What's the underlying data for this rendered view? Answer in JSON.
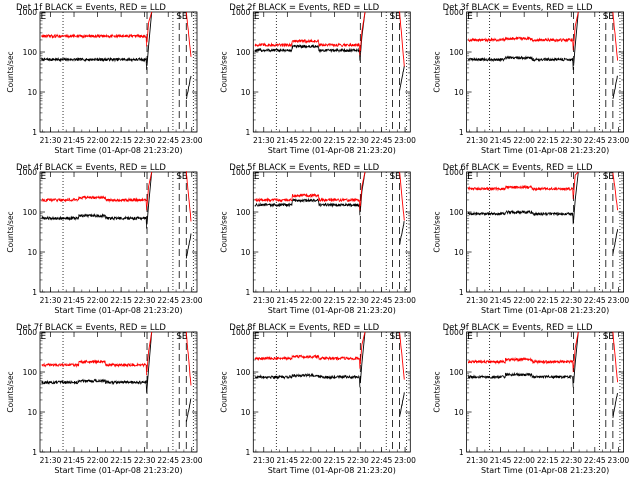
{
  "colors": {
    "background": "#ffffff",
    "events": "#000000",
    "lld": "#ff0000",
    "axis": "#000000"
  },
  "chart_data": [
    {
      "type": "line",
      "title": "Det 1f BLACK = Events, RED = LLD",
      "ylabel": "Counts/sec",
      "xlabel": "Start Time (01-Apr-08 21:23:20)",
      "yscale": "log",
      "ylim": [
        1,
        1000
      ],
      "y_ticks": [
        "1",
        "10",
        "100",
        "1000"
      ],
      "x_ticks": [
        "21:30",
        "21:45",
        "22:00",
        "22:15",
        "22:30",
        "22:45",
        "23:00"
      ],
      "xlim": [
        "21:23:20",
        "23:03:20"
      ],
      "markers": [
        {
          "label": "E",
          "time": "21:23:40"
        },
        {
          "label": "S",
          "time": "22:52:00"
        },
        {
          "label": "E",
          "time": "22:55:30"
        }
      ],
      "series": [
        {
          "color": "#000000",
          "base": 65,
          "bump": 1.0
        },
        {
          "color": "#ff0000",
          "base": 250,
          "bump": 1.0
        }
      ]
    },
    {
      "type": "line",
      "title": "Det 2f BLACK = Events, RED = LLD",
      "ylabel": "Counts/sec",
      "xlabel": "Start Time (01-Apr-08 21:23:20)",
      "yscale": "log",
      "ylim": [
        1,
        1000
      ],
      "y_ticks": [
        "1",
        "10",
        "100",
        "1000"
      ],
      "x_ticks": [
        "21:30",
        "21:45",
        "22:00",
        "22:15",
        "22:30",
        "22:45",
        "23:00"
      ],
      "xlim": [
        "21:23:20",
        "23:03:20"
      ],
      "markers": [
        {
          "label": "E",
          "time": "21:23:40"
        },
        {
          "label": "S",
          "time": "22:52:00"
        },
        {
          "label": "E",
          "time": "22:55:30"
        }
      ],
      "series": [
        {
          "color": "#000000",
          "base": 110,
          "bump": 1.25
        },
        {
          "color": "#ff0000",
          "base": 150,
          "bump": 1.25
        }
      ]
    },
    {
      "type": "line",
      "title": "Det 3f BLACK = Events, RED = LLD",
      "ylabel": "Counts/sec",
      "xlabel": "Start Time (01-Apr-08 21:23:20)",
      "yscale": "log",
      "ylim": [
        1,
        1000
      ],
      "y_ticks": [
        "1",
        "10",
        "100",
        "1000"
      ],
      "x_ticks": [
        "21:30",
        "21:45",
        "22:00",
        "22:15",
        "22:30",
        "22:45",
        "23:00"
      ],
      "xlim": [
        "21:23:20",
        "23:03:20"
      ],
      "markers": [
        {
          "label": "E",
          "time": "21:23:40"
        },
        {
          "label": "S",
          "time": "22:52:00"
        },
        {
          "label": "E",
          "time": "22:55:30"
        }
      ],
      "series": [
        {
          "color": "#000000",
          "base": 65,
          "bump": 1.1
        },
        {
          "color": "#ff0000",
          "base": 200,
          "bump": 1.1
        }
      ]
    },
    {
      "type": "line",
      "title": "Det 4f BLACK = Events, RED = LLD",
      "ylabel": "Counts/sec",
      "xlabel": "Start Time (01-Apr-08 21:23:20)",
      "yscale": "log",
      "ylim": [
        1,
        1000
      ],
      "y_ticks": [
        "1",
        "10",
        "100",
        "1000"
      ],
      "x_ticks": [
        "21:30",
        "21:45",
        "22:00",
        "22:15",
        "22:30",
        "22:45",
        "23:00"
      ],
      "xlim": [
        "21:23:20",
        "23:03:20"
      ],
      "markers": [
        {
          "label": "E",
          "time": "21:23:40"
        },
        {
          "label": "S",
          "time": "22:52:00"
        },
        {
          "label": "E",
          "time": "22:55:30"
        }
      ],
      "series": [
        {
          "color": "#000000",
          "base": 70,
          "bump": 1.15
        },
        {
          "color": "#ff0000",
          "base": 200,
          "bump": 1.15
        }
      ]
    },
    {
      "type": "line",
      "title": "Det 5f BLACK = Events, RED = LLD",
      "ylabel": "Counts/sec",
      "xlabel": "Start Time (01-Apr-08 21:23:20)",
      "yscale": "log",
      "ylim": [
        1,
        1000
      ],
      "y_ticks": [
        "1",
        "10",
        "100",
        "1000"
      ],
      "x_ticks": [
        "21:30",
        "21:45",
        "22:00",
        "22:15",
        "22:30",
        "22:45",
        "23:00"
      ],
      "xlim": [
        "21:23:20",
        "23:03:20"
      ],
      "markers": [
        {
          "label": "E",
          "time": "21:23:40"
        },
        {
          "label": "S",
          "time": "22:52:00"
        },
        {
          "label": "E",
          "time": "22:55:30"
        }
      ],
      "series": [
        {
          "color": "#000000",
          "base": 150,
          "bump": 1.3
        },
        {
          "color": "#ff0000",
          "base": 200,
          "bump": 1.3
        }
      ]
    },
    {
      "type": "line",
      "title": "Det 6f BLACK = Events, RED = LLD",
      "ylabel": "Counts/sec",
      "xlabel": "Start Time (01-Apr-08 21:23:20)",
      "yscale": "log",
      "ylim": [
        1,
        1000
      ],
      "y_ticks": [
        "1",
        "10",
        "100",
        "1000"
      ],
      "x_ticks": [
        "21:30",
        "21:45",
        "22:00",
        "22:15",
        "22:30",
        "22:45",
        "23:00"
      ],
      "xlim": [
        "21:23:20",
        "23:03:20"
      ],
      "markers": [
        {
          "label": "E",
          "time": "21:23:40"
        },
        {
          "label": "S",
          "time": "22:52:00"
        },
        {
          "label": "E",
          "time": "22:55:30"
        }
      ],
      "series": [
        {
          "color": "#000000",
          "base": 90,
          "bump": 1.1
        },
        {
          "color": "#ff0000",
          "base": 380,
          "bump": 1.1
        }
      ]
    },
    {
      "type": "line",
      "title": "Det 7f BLACK = Events, RED = LLD",
      "ylabel": "Counts/sec",
      "xlabel": "Start Time (01-Apr-08 21:23:20)",
      "yscale": "log",
      "ylim": [
        1,
        1000
      ],
      "y_ticks": [
        "1",
        "10",
        "100",
        "1000"
      ],
      "x_ticks": [
        "21:30",
        "21:45",
        "22:00",
        "22:15",
        "22:30",
        "22:45",
        "23:00"
      ],
      "xlim": [
        "21:23:20",
        "23:03:20"
      ],
      "markers": [
        {
          "label": "E",
          "time": "21:23:40"
        },
        {
          "label": "S",
          "time": "22:52:00"
        },
        {
          "label": "E",
          "time": "22:55:30"
        }
      ],
      "series": [
        {
          "color": "#000000",
          "base": 55,
          "bump": 1.1
        },
        {
          "color": "#ff0000",
          "base": 150,
          "bump": 1.2
        }
      ]
    },
    {
      "type": "line",
      "title": "Det 8f BLACK = Events, RED = LLD",
      "ylabel": "Counts/sec",
      "xlabel": "Start Time (01-Apr-08 21:23:20)",
      "yscale": "log",
      "ylim": [
        1,
        1000
      ],
      "y_ticks": [
        "1",
        "10",
        "100",
        "1000"
      ],
      "x_ticks": [
        "21:30",
        "21:45",
        "22:00",
        "22:15",
        "22:30",
        "22:45",
        "23:00"
      ],
      "xlim": [
        "21:23:20",
        "23:03:20"
      ],
      "markers": [
        {
          "label": "E",
          "time": "21:23:40"
        },
        {
          "label": "S",
          "time": "22:52:00"
        },
        {
          "label": "E",
          "time": "22:55:30"
        }
      ],
      "series": [
        {
          "color": "#000000",
          "base": 75,
          "bump": 1.1
        },
        {
          "color": "#ff0000",
          "base": 220,
          "bump": 1.1
        }
      ]
    },
    {
      "type": "line",
      "title": "Det 9f BLACK = Events, RED = LLD",
      "ylabel": "Counts/sec",
      "xlabel": "Start Time (01-Apr-08 21:23:20)",
      "yscale": "log",
      "ylim": [
        1,
        1000
      ],
      "y_ticks": [
        "1",
        "10",
        "100",
        "1000"
      ],
      "x_ticks": [
        "21:30",
        "21:45",
        "22:00",
        "22:15",
        "22:30",
        "22:45",
        "23:00"
      ],
      "xlim": [
        "21:23:20",
        "23:03:20"
      ],
      "markers": [
        {
          "label": "E",
          "time": "21:23:40"
        },
        {
          "label": "S",
          "time": "22:52:00"
        },
        {
          "label": "E",
          "time": "22:55:30"
        }
      ],
      "series": [
        {
          "color": "#000000",
          "base": 75,
          "bump": 1.15
        },
        {
          "color": "#ff0000",
          "base": 180,
          "bump": 1.15
        }
      ]
    }
  ]
}
